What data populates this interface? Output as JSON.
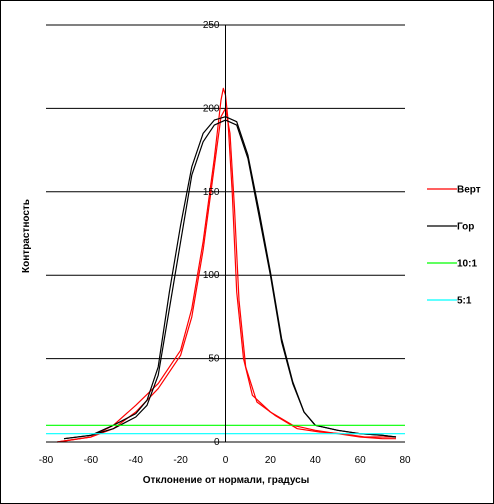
{
  "chart_data": {
    "type": "line",
    "xlabel": "Отклонение от нормали, градусы",
    "ylabel": "Контрастность",
    "xlim": [
      -80,
      80
    ],
    "ylim": [
      0,
      250
    ],
    "x_ticks": [
      "-80",
      "-60",
      "-40",
      "-20",
      "0",
      "20",
      "40",
      "60",
      "80"
    ],
    "y_ticks": [
      "0",
      "50",
      "100",
      "150",
      "200",
      "250"
    ],
    "grid": "horizontal",
    "legend_position": "right",
    "series": [
      {
        "name": "Верт",
        "color": "#ff0000",
        "points": [
          [
            -75,
            0
          ],
          [
            -60,
            3
          ],
          [
            -50,
            10
          ],
          [
            -40,
            22
          ],
          [
            -30,
            35
          ],
          [
            -20,
            55
          ],
          [
            -15,
            80
          ],
          [
            -10,
            120
          ],
          [
            -5,
            170
          ],
          [
            -2,
            205
          ],
          [
            -1,
            212
          ],
          [
            0,
            208
          ],
          [
            1,
            195
          ],
          [
            3,
            150
          ],
          [
            5,
            90
          ],
          [
            8,
            50
          ],
          [
            12,
            28
          ],
          [
            20,
            18
          ],
          [
            30,
            10
          ],
          [
            40,
            7
          ],
          [
            50,
            5
          ],
          [
            60,
            3
          ],
          [
            70,
            2
          ],
          [
            76,
            2
          ]
        ]
      },
      {
        "name": "Верт",
        "color": "#ff0000",
        "points": [
          [
            -75,
            0
          ],
          [
            -60,
            3
          ],
          [
            -50,
            8
          ],
          [
            -40,
            18
          ],
          [
            -30,
            32
          ],
          [
            -20,
            52
          ],
          [
            -15,
            75
          ],
          [
            -10,
            115
          ],
          [
            -5,
            165
          ],
          [
            -2,
            195
          ],
          [
            0,
            200
          ],
          [
            2,
            185
          ],
          [
            4,
            140
          ],
          [
            6,
            85
          ],
          [
            9,
            45
          ],
          [
            14,
            24
          ],
          [
            22,
            16
          ],
          [
            32,
            8
          ],
          [
            42,
            6
          ],
          [
            52,
            5
          ],
          [
            62,
            3
          ],
          [
            70,
            3
          ],
          [
            76,
            3
          ]
        ]
      },
      {
        "name": "Гор",
        "color": "#000000",
        "points": [
          [
            -72,
            2
          ],
          [
            -60,
            4
          ],
          [
            -50,
            8
          ],
          [
            -40,
            15
          ],
          [
            -35,
            22
          ],
          [
            -30,
            40
          ],
          [
            -25,
            80
          ],
          [
            -20,
            120
          ],
          [
            -15,
            160
          ],
          [
            -10,
            180
          ],
          [
            -5,
            190
          ],
          [
            0,
            193
          ],
          [
            5,
            190
          ],
          [
            10,
            170
          ],
          [
            15,
            135
          ],
          [
            20,
            100
          ],
          [
            25,
            60
          ],
          [
            30,
            35
          ],
          [
            35,
            18
          ],
          [
            40,
            10
          ],
          [
            50,
            7
          ],
          [
            60,
            5
          ],
          [
            70,
            4
          ],
          [
            76,
            3
          ]
        ]
      },
      {
        "name": "Гор",
        "color": "#000000",
        "points": [
          [
            -72,
            2
          ],
          [
            -60,
            4
          ],
          [
            -50,
            10
          ],
          [
            -40,
            17
          ],
          [
            -35,
            25
          ],
          [
            -30,
            45
          ],
          [
            -25,
            90
          ],
          [
            -20,
            130
          ],
          [
            -15,
            165
          ],
          [
            -10,
            185
          ],
          [
            -5,
            193
          ],
          [
            0,
            195
          ],
          [
            5,
            192
          ],
          [
            10,
            172
          ],
          [
            15,
            138
          ],
          [
            20,
            102
          ],
          [
            25,
            62
          ],
          [
            30,
            36
          ],
          [
            35,
            18
          ],
          [
            40,
            10
          ],
          [
            50,
            7
          ],
          [
            60,
            5
          ],
          [
            70,
            4
          ],
          [
            76,
            3
          ]
        ]
      },
      {
        "name": "10:1",
        "color": "#00ff00",
        "points": [
          [
            -80,
            10
          ],
          [
            80,
            10
          ]
        ]
      },
      {
        "name": "5:1",
        "color": "#00ffff",
        "points": [
          [
            -80,
            5
          ],
          [
            80,
            5
          ]
        ]
      }
    ]
  },
  "legend": [
    {
      "label": "Верт",
      "color": "#ff0000"
    },
    {
      "label": "Гор",
      "color": "#000000"
    },
    {
      "label": "10:1",
      "color": "#00ff00"
    },
    {
      "label": "5:1",
      "color": "#00ffff"
    }
  ]
}
